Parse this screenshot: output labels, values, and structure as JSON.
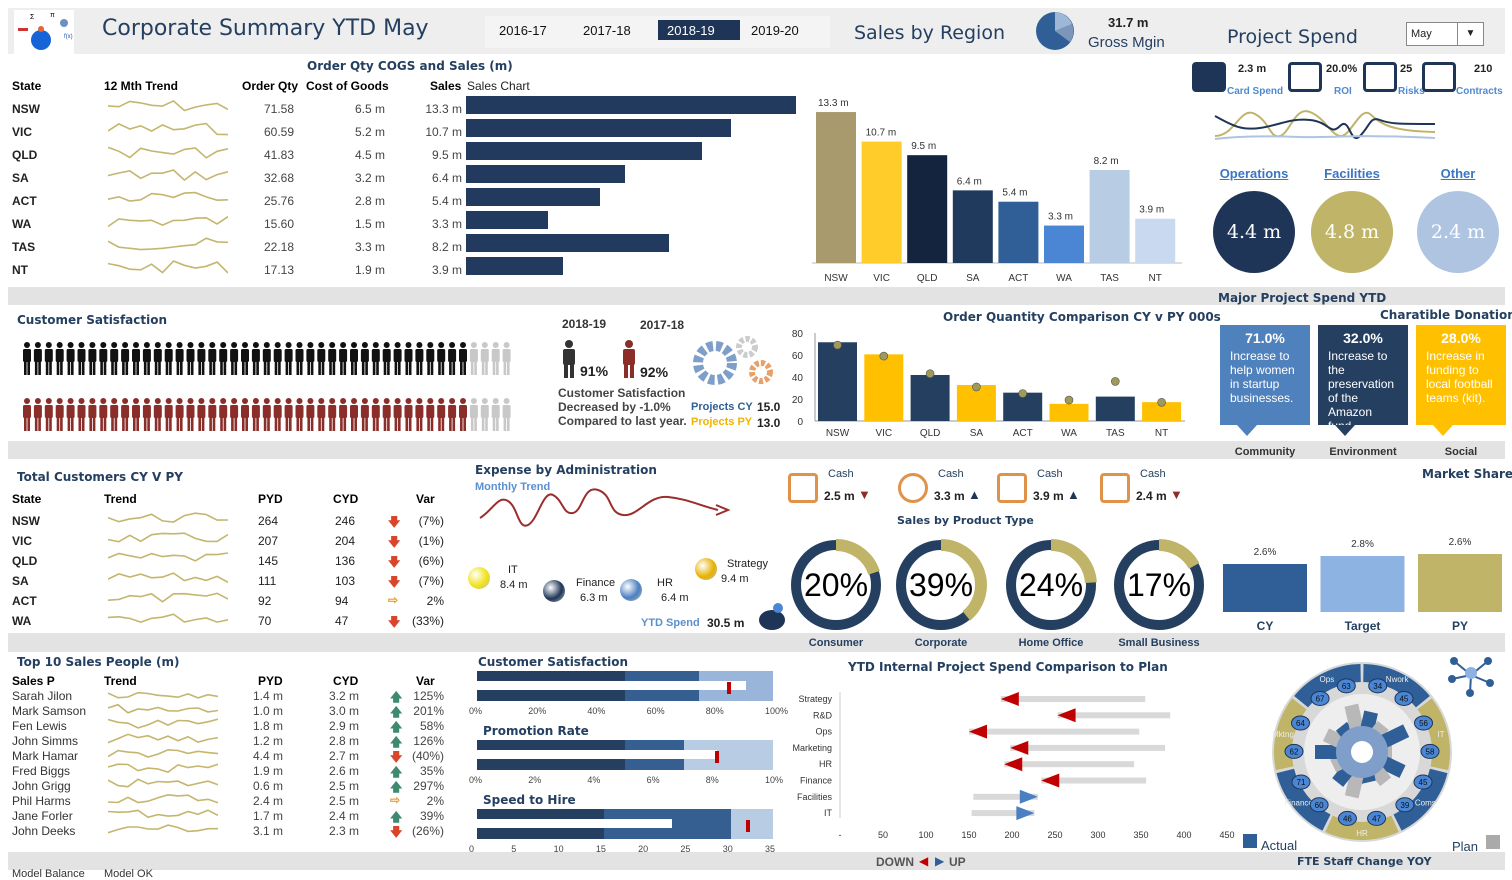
{
  "header": {
    "title": "Corporate Summary YTD May",
    "years": [
      "2016-17",
      "2017-18",
      "2018-19",
      "2019-20"
    ],
    "selected_year": "2018-19",
    "sales_by_region": "Sales by Region",
    "gross_margin_value": "31.7 m",
    "gross_margin_label": "Gross Mgin",
    "project_spend": "Project Spend",
    "month": "May"
  },
  "sales_table": {
    "title": "Order Qty COGS and Sales (m)",
    "headers": {
      "state": "State",
      "trend": "12 Mth Trend",
      "order_qty": "Order Qty",
      "cogs": "Cost of Goods",
      "sales": "Sales",
      "sales_chart": "Sales Chart"
    },
    "rows": [
      {
        "state": "NSW",
        "order_qty": "71.58",
        "cogs": "6.5 m",
        "sales": "13.3 m",
        "sales_value": 13.3
      },
      {
        "state": "VIC",
        "order_qty": "60.59",
        "cogs": "5.2 m",
        "sales": "10.7 m",
        "sales_value": 10.7
      },
      {
        "state": "QLD",
        "order_qty": "41.83",
        "cogs": "4.5 m",
        "sales": "9.5 m",
        "sales_value": 9.5
      },
      {
        "state": "SA",
        "order_qty": "32.68",
        "cogs": "3.2 m",
        "sales": "6.4 m",
        "sales_value": 6.4
      },
      {
        "state": "ACT",
        "order_qty": "25.76",
        "cogs": "2.8 m",
        "sales": "5.4 m",
        "sales_value": 5.4
      },
      {
        "state": "WA",
        "order_qty": "15.60",
        "cogs": "1.5 m",
        "sales": "3.3 m",
        "sales_value": 3.3
      },
      {
        "state": "TAS",
        "order_qty": "22.18",
        "cogs": "3.3 m",
        "sales": "8.2 m",
        "sales_value": 8.2
      },
      {
        "state": "NT",
        "order_qty": "17.13",
        "cogs": "1.9 m",
        "sales": "3.9 m",
        "sales_value": 3.9
      }
    ]
  },
  "kpis": [
    {
      "value": "2.3 m",
      "label": "Card Spend",
      "icon": "credit-card-icon"
    },
    {
      "value": "20.0%",
      "label": "ROI",
      "icon": "growth-chart-icon"
    },
    {
      "value": "25",
      "label": "Risks",
      "icon": "safe-icon"
    },
    {
      "value": "210",
      "label": "Contracts",
      "icon": "contract-pen-icon"
    }
  ],
  "spend_circles": [
    {
      "label": "Operations",
      "value": "4.4 m",
      "color": "#1f3557"
    },
    {
      "label": "Facilities",
      "value": "4.8 m",
      "color": "#bfb468"
    },
    {
      "label": "Other",
      "value": "2.4 m",
      "color": "#aec4e0"
    }
  ],
  "major_project_title": "Major Project Spend YTD",
  "customer_satisfaction": {
    "title": "Customer Satisfaction",
    "cy_label": "2018-19",
    "py_label": "2017-18",
    "cy_pct": "91%",
    "py_pct": "92%",
    "cy_value": 0.91,
    "py_value": 0.92,
    "line1": "Customer Satisfaction",
    "line2": "Decreased by -1.0%",
    "line3": "Compared to last year.",
    "projects_cy_label": "Projects CY",
    "projects_cy": "15.0",
    "projects_py_label": "Projects PY",
    "projects_py": "13.0"
  },
  "charity": {
    "title": "Charatible Donations",
    "items": [
      {
        "pct": "71.0%",
        "text": "Increase to help women in startup businesses.",
        "label": "Community",
        "color": "#4f81bd"
      },
      {
        "pct": "32.0%",
        "text": "Increase to the preservation of the Amazon fund.",
        "label": "Environment",
        "color": "#243f60"
      },
      {
        "pct": "28.0%",
        "text": "Increase in funding to local football teams (kit).",
        "label": "Social",
        "color": "#ffc000"
      }
    ]
  },
  "total_customers": {
    "title": "Total Customers CY V PY",
    "headers": {
      "state": "State",
      "trend": "Trend",
      "pyd": "PYD",
      "cyd": "CYD",
      "var": "Var"
    },
    "rows": [
      {
        "state": "NSW",
        "pyd": "264",
        "cyd": "246",
        "var": "(7%)",
        "dir": "down"
      },
      {
        "state": "VIC",
        "pyd": "207",
        "cyd": "204",
        "var": "(1%)",
        "dir": "down"
      },
      {
        "state": "QLD",
        "pyd": "145",
        "cyd": "136",
        "var": "(6%)",
        "dir": "down"
      },
      {
        "state": "SA",
        "pyd": "111",
        "cyd": "103",
        "var": "(7%)",
        "dir": "down"
      },
      {
        "state": "ACT",
        "pyd": "92",
        "cyd": "94",
        "var": "2%",
        "dir": "flat"
      },
      {
        "state": "WA",
        "pyd": "70",
        "cyd": "47",
        "var": "(33%)",
        "dir": "down"
      }
    ]
  },
  "expense": {
    "title": "Expense by Administration",
    "subtitle": "Monthly Trend",
    "items": [
      {
        "name": "IT",
        "value": "8.4 m",
        "color": "#f2e21a"
      },
      {
        "name": "Finance",
        "value": "6.3 m",
        "color": "#1f3557"
      },
      {
        "name": "HR",
        "value": "6.4 m",
        "color": "#4a7fc1"
      },
      {
        "name": "Strategy",
        "value": "9.4 m",
        "color": "#e8b100"
      }
    ],
    "ytd_label": "YTD Spend",
    "ytd_value": "30.5 m"
  },
  "cash": [
    {
      "label": "Cash",
      "value": "2.5 m",
      "dir": "down",
      "icon": "coins-icon"
    },
    {
      "label": "Cash",
      "value": "3.3 m",
      "dir": "up",
      "icon": "dollar-cycle-icon"
    },
    {
      "label": "Cash",
      "value": "3.9 m",
      "dir": "up",
      "icon": "handshake-gear-icon"
    },
    {
      "label": "Cash",
      "value": "2.4 m",
      "dir": "down",
      "icon": "bar-chart-icon"
    }
  ],
  "product": {
    "title": "Sales by Product Type",
    "items": [
      {
        "label": "Consumer",
        "pct": "20%",
        "value": 0.2
      },
      {
        "label": "Corporate",
        "pct": "39%",
        "value": 0.39
      },
      {
        "label": "Home Office",
        "pct": "24%",
        "value": 0.24
      },
      {
        "label": "Small Business",
        "pct": "17%",
        "value": 0.17
      }
    ]
  },
  "top10": {
    "title": "Top 10 Sales People (m)",
    "headers": {
      "name": "Sales P",
      "trend": "Trend",
      "pyd": "PYD",
      "cyd": "CYD",
      "var": "Var"
    },
    "rows": [
      {
        "name": "Sarah Jilon",
        "pyd": "1.4 m",
        "cyd": "3.2 m",
        "var": "125%",
        "dir": "up"
      },
      {
        "name": "Mark Samson",
        "pyd": "1.0 m",
        "cyd": "3.0 m",
        "var": "201%",
        "dir": "up"
      },
      {
        "name": "Fen Lewis",
        "pyd": "1.8 m",
        "cyd": "2.9 m",
        "var": "58%",
        "dir": "up"
      },
      {
        "name": "John Simms",
        "pyd": "1.2 m",
        "cyd": "2.8 m",
        "var": "126%",
        "dir": "up"
      },
      {
        "name": "Mark Hamar",
        "pyd": "4.4 m",
        "cyd": "2.7 m",
        "var": "(40%)",
        "dir": "down"
      },
      {
        "name": "Fred Biggs",
        "pyd": "1.9 m",
        "cyd": "2.6 m",
        "var": "35%",
        "dir": "up"
      },
      {
        "name": "John Grigg",
        "pyd": "0.6 m",
        "cyd": "2.5 m",
        "var": "297%",
        "dir": "up"
      },
      {
        "name": "Phil Harms",
        "pyd": "2.4 m",
        "cyd": "2.5 m",
        "var": "2%",
        "dir": "flat"
      },
      {
        "name": "Jane Forler",
        "pyd": "1.7 m",
        "cyd": "2.4 m",
        "var": "39%",
        "dir": "up"
      },
      {
        "name": "John Deeks",
        "pyd": "3.1 m",
        "cyd": "2.3 m",
        "var": "(26%)",
        "dir": "down"
      }
    ]
  },
  "bullets": [
    {
      "title": "Customer Satisfaction",
      "ticks": [
        "0%",
        "20%",
        "40%",
        "60%",
        "80%",
        "100%"
      ],
      "max": 100,
      "bands": [
        50,
        75,
        100
      ],
      "value": 91,
      "target": 85
    },
    {
      "title": "Promotion Rate",
      "ticks": [
        "0%",
        "2%",
        "4%",
        "6%",
        "8%",
        "10%"
      ],
      "max": 10,
      "bands": [
        5,
        7,
        10
      ],
      "value": 8.1,
      "target": 8.1
    },
    {
      "title": "Speed to Hire",
      "ticks": [
        "0",
        "5",
        "10",
        "15",
        "20",
        "25",
        "30",
        "35"
      ],
      "max": 35,
      "bands": [
        15,
        30,
        35
      ],
      "value": 23,
      "target": 32
    }
  ],
  "fte": {
    "title": "FTE Staff Change YOY",
    "actual_label": "Actual",
    "plan_label": "Plan",
    "segments": [
      {
        "name": "Nwork",
        "values": [
          "34",
          "45"
        ]
      },
      {
        "name": "IT",
        "values": [
          "56",
          "58"
        ]
      },
      {
        "name": "Coms",
        "values": [
          "45",
          "39"
        ]
      },
      {
        "name": "HR",
        "values": [
          "47",
          "46"
        ]
      },
      {
        "name": "Finance",
        "values": [
          "60",
          "71"
        ]
      },
      {
        "name": "Mktng",
        "values": [
          "62",
          "64"
        ]
      },
      {
        "name": "Ops",
        "values": [
          "67",
          "63"
        ]
      }
    ]
  },
  "footer": {
    "down": "DOWN",
    "up": "UP",
    "model_balance": "Model Balance",
    "model_ok": "Model OK"
  },
  "chart_data": [
    {
      "type": "bar",
      "title": "Sales by Region",
      "categories": [
        "NSW",
        "VIC",
        "QLD",
        "SA",
        "ACT",
        "WA",
        "TAS",
        "NT"
      ],
      "values": [
        13.3,
        10.7,
        9.5,
        6.4,
        5.4,
        3.3,
        8.2,
        3.9
      ],
      "labels": [
        "13.3 m",
        "10.7 m",
        "9.5 m",
        "6.4 m",
        "5.4 m",
        "3.3 m",
        "8.2 m",
        "3.9 m"
      ],
      "colors": [
        "#a99a6e",
        "#ffcc29",
        "#14243f",
        "#203a5e",
        "#2f5f96",
        "#4a86d4",
        "#b8cde4",
        "#c9daf0"
      ]
    },
    {
      "type": "bar",
      "title": "Order Quantity Comparison CY v PY 000s",
      "categories": [
        "NSW",
        "VIC",
        "QLD",
        "SA",
        "ACT",
        "WA",
        "TAS",
        "NT"
      ],
      "series": [
        {
          "name": "CY",
          "values": [
            71.58,
            60.59,
            41.83,
            32.68,
            25.76,
            15.6,
            22.18,
            17.13
          ]
        },
        {
          "name": "PY",
          "values": [
            69,
            59,
            43,
            31,
            25,
            19,
            36,
            17
          ]
        }
      ],
      "yticks": [
        "0",
        "20",
        "40",
        "60",
        "80"
      ],
      "ylim": [
        0,
        80
      ],
      "colors": [
        "#243f60",
        "#ffc000"
      ]
    },
    {
      "type": "bar",
      "title": "Market Share",
      "categories": [
        "CY",
        "Target",
        "PY"
      ],
      "values": [
        2.6,
        2.8,
        2.6
      ],
      "labels": [
        "2.6%",
        "2.8%",
        "2.6%"
      ],
      "colors": [
        "#2f5f96",
        "#8db3e2",
        "#bfb468"
      ]
    },
    {
      "type": "bar",
      "title": "YTD Internal Project Spend Comparison to Plan",
      "categories": [
        "Strategy",
        "R&D",
        "Ops",
        "Marketing",
        "HR",
        "Finance",
        "Facilities",
        "IT"
      ],
      "series": [
        {
          "name": "Actual",
          "values": [
            187,
            253,
            150,
            198,
            191,
            234,
            230,
            226
          ]
        },
        {
          "name": "Plan",
          "values": [
            355,
            384,
            348,
            378,
            342,
            356,
            155,
            153
          ]
        }
      ],
      "xticks": [
        "-",
        "50",
        "100",
        "150",
        "200",
        "250",
        "300",
        "350",
        "400",
        "450"
      ],
      "xlim": [
        0,
        450
      ]
    }
  ]
}
